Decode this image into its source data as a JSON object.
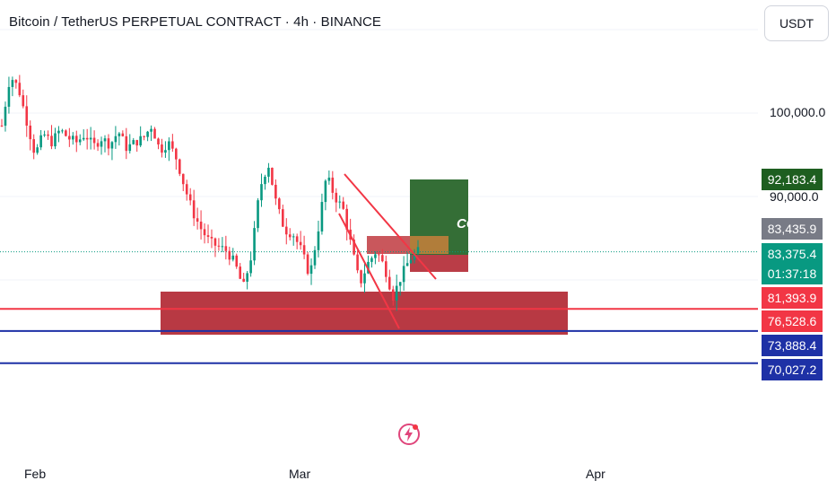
{
  "header": {
    "title": "Bitcoin / TetherUS PERPETUAL CONTRACT · 4h · BINANCE",
    "currency_button": "USDT"
  },
  "annotation_label": "CCCryptoCommunity",
  "colors": {
    "up": "#089981",
    "down": "#f23645",
    "zone": "#b22833",
    "support_red": "#f23645",
    "support_blue": "#1e31a6",
    "target_green": "#1e5e20",
    "last_price_tag": "#089981",
    "grey_tag": "#787b86"
  },
  "price_tags": [
    {
      "label": "92,183.4",
      "color": "#1e5e20"
    },
    {
      "label": "83,435.9",
      "color": "#787b86"
    },
    {
      "label": "83,375.4",
      "color": "#089981"
    },
    {
      "label": "01:37:18",
      "color": "#089981"
    },
    {
      "label": "81,393.9",
      "color": "#f23645"
    },
    {
      "label": "76,528.6",
      "color": "#f23645"
    },
    {
      "label": "73,888.4",
      "color": "#1e31a6"
    },
    {
      "label": "70,027.2",
      "color": "#1e31a6"
    }
  ],
  "chart_data": {
    "type": "candlestick",
    "symbol": "Bitcoin / TetherUS PERPETUAL CONTRACT",
    "timeframe": "4h",
    "exchange": "BINANCE",
    "y_ticks": [
      "100,000.0",
      "90,000.0"
    ],
    "x_ticks": [
      "Feb",
      "Mar",
      "Apr"
    ],
    "last_price": 83375.4,
    "countdown": "01:37:18",
    "horizontal_levels": [
      {
        "value": 76528.6,
        "color": "red"
      },
      {
        "value": 73888.4,
        "color": "blue"
      },
      {
        "value": 70027.2,
        "color": "blue"
      }
    ],
    "target": 92183.4,
    "entry": 83435.9,
    "stop": 81393.9,
    "price_path": [
      98500,
      104500,
      103000,
      99000,
      95000,
      97500,
      96500,
      98000,
      97000,
      96500,
      97500,
      96000,
      97000,
      96200,
      97800,
      95800,
      96500,
      97000,
      98500,
      95500,
      96500,
      94500,
      91000,
      88000,
      86000,
      84500,
      84000,
      83500,
      82000,
      79000,
      83000,
      91000,
      94000,
      89000,
      86000,
      85500,
      83500,
      80500,
      86000,
      92500,
      90000,
      88500,
      84000,
      79500,
      82000,
      83500,
      81500,
      78000,
      80500,
      82500,
      83400
    ]
  }
}
